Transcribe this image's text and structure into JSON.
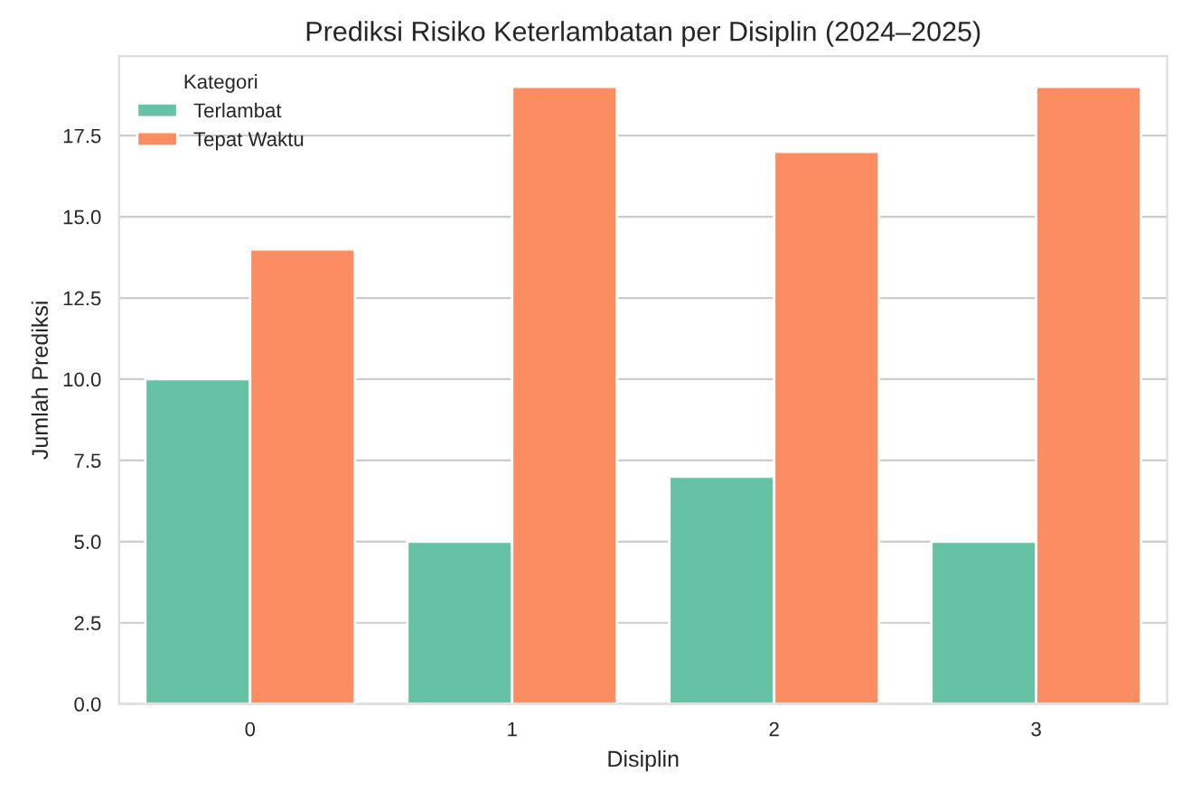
{
  "chart_data": {
    "type": "bar",
    "title": "Prediksi Risiko Keterlambatan per Disiplin (2024–2025)",
    "xlabel": "Disiplin",
    "ylabel": "Jumlah Prediksi",
    "legend_title": "Kategori",
    "categories": [
      "0",
      "1",
      "2",
      "3"
    ],
    "series": [
      {
        "name": "Terlambat",
        "color": "#66c2a5",
        "values": [
          10,
          5,
          7,
          5
        ]
      },
      {
        "name": "Tepat Waktu",
        "color": "#fc8d62",
        "values": [
          14,
          19,
          17,
          19
        ]
      }
    ],
    "ylim": [
      0,
      19.95
    ],
    "yticks": [
      {
        "value": 0,
        "label": "0.0"
      },
      2.5,
      {
        "value": 5,
        "label": "5.0"
      },
      7.5,
      {
        "value": 10,
        "label": "10.0"
      },
      12.5,
      {
        "value": 15,
        "label": "15.0"
      },
      17.5
    ],
    "grid": "y",
    "legend": "top left"
  }
}
